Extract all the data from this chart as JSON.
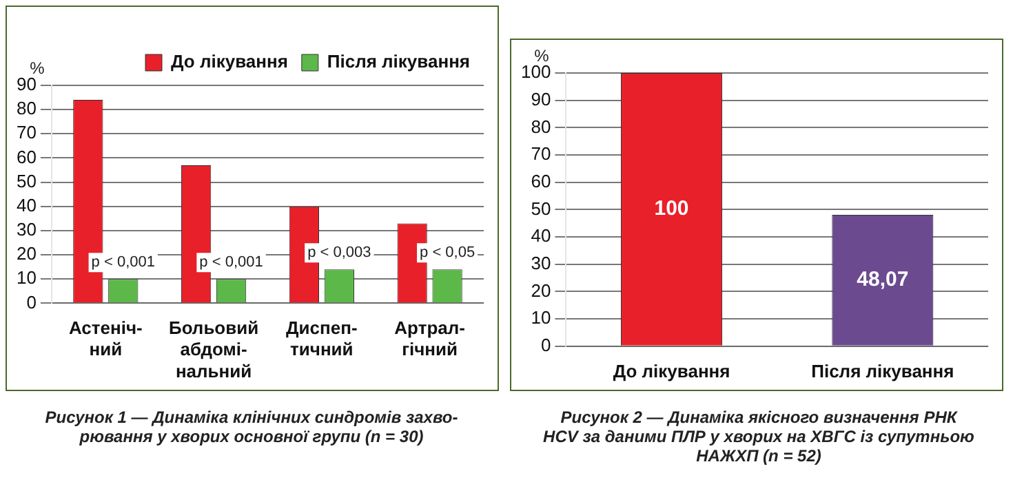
{
  "chart_data": [
    {
      "type": "bar",
      "title": "Рисунок 1 — Динаміка клінічних синдромів захво-\nрювання у хворих основної групи (n = 30)",
      "ylabel": "%",
      "categories": [
        "Астеніч-\nний",
        "Больовий\nабдомі-\nнальний",
        "Диспеп-\nтичний",
        "Артрал-\nгічний"
      ],
      "series": [
        {
          "name": "До лікування",
          "color": "#e8202a",
          "values": [
            84,
            57,
            40,
            33
          ]
        },
        {
          "name": "Після лікування",
          "color": "#5cb848",
          "values": [
            10,
            10,
            14,
            14
          ]
        }
      ],
      "annotations": [
        {
          "text": "p < 0,001",
          "x": "Астеніч-\nний"
        },
        {
          "text": "p < 0,001",
          "x": "Больовий\nабдомі-\nнальний"
        },
        {
          "text": "p < 0,003",
          "x": "Диспеп-\nтичний"
        },
        {
          "text": "p < 0,05",
          "x": "Артрал-\nгічний"
        }
      ],
      "ylim": [
        0,
        90
      ],
      "yticks": [
        0,
        10,
        20,
        30,
        40,
        50,
        60,
        70,
        80,
        90
      ],
      "grid": "y",
      "legend": "top right"
    },
    {
      "type": "bar",
      "title": "Рисунок 2 — Динаміка якісного визначення РНК\nHCV за даними ПЛР у хворих на ХВГС із супутньою\nНАЖХП (n = 52)",
      "ylabel": "%",
      "categories": [
        "До лікування",
        "Після лікування"
      ],
      "values": [
        100,
        48.07
      ],
      "colors": [
        "#e8202a",
        "#6b4a8f"
      ],
      "value_labels": [
        "100",
        "48,07"
      ],
      "ylim": [
        0,
        100
      ],
      "yticks": [
        0,
        10,
        20,
        30,
        40,
        50,
        60,
        70,
        80,
        90,
        100
      ],
      "grid": "y"
    }
  ]
}
